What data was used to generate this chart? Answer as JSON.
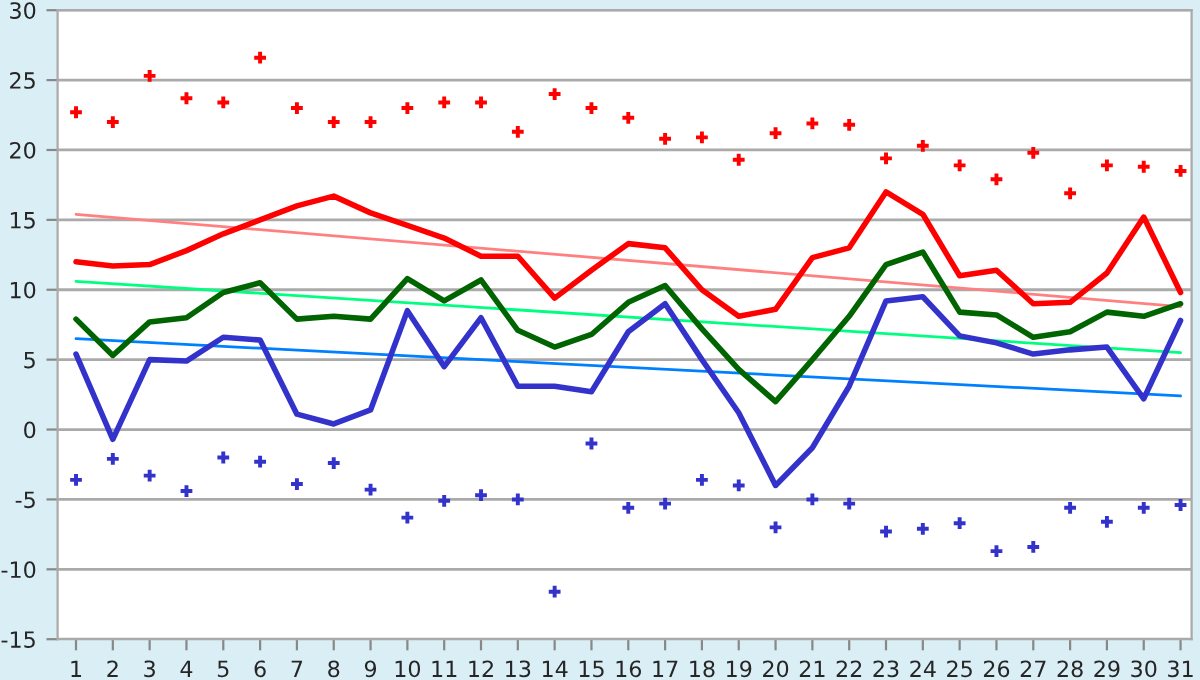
{
  "chart_data": {
    "type": "line",
    "categories": [
      "1",
      "2",
      "3",
      "4",
      "5",
      "6",
      "7",
      "8",
      "9",
      "10",
      "11",
      "12",
      "13",
      "14",
      "15",
      "16",
      "17",
      "18",
      "19",
      "20",
      "21",
      "22",
      "23",
      "24",
      "25",
      "26",
      "27",
      "28",
      "29",
      "30",
      "31"
    ],
    "ylim": [
      -15,
      30
    ],
    "yticks": [
      -15,
      -10,
      -5,
      0,
      5,
      10,
      15,
      20,
      25,
      30
    ],
    "grid": "y",
    "series": [
      {
        "type": "scatter",
        "marker": "cross",
        "color": "#ff0000",
        "values": [
          22.7,
          22.0,
          25.3,
          23.7,
          23.4,
          26.6,
          23.0,
          22.0,
          22.0,
          23.0,
          23.4,
          23.4,
          21.3,
          24.0,
          23.0,
          22.3,
          20.8,
          20.9,
          19.3,
          21.2,
          21.9,
          21.8,
          19.4,
          20.3,
          18.9,
          17.9,
          19.8,
          16.9,
          18.9,
          18.8,
          18.5
        ]
      },
      {
        "type": "scatter",
        "marker": "cross",
        "color": "#3333cc",
        "values": [
          -3.6,
          -2.1,
          -3.3,
          -4.4,
          -2.0,
          -2.3,
          -3.9,
          -2.4,
          -4.3,
          -6.3,
          -5.1,
          -4.7,
          -5.0,
          -11.6,
          -1.0,
          -5.6,
          -5.3,
          -3.6,
          -4.0,
          -7.0,
          -5.0,
          -5.3,
          -7.3,
          -7.1,
          -6.7,
          -8.7,
          -8.4,
          -5.6,
          -6.6,
          -5.6,
          -5.4
        ]
      },
      {
        "type": "line",
        "x": [
          "1",
          "31"
        ],
        "color": "#ff8080",
        "values": [
          15.4,
          8.8
        ]
      },
      {
        "type": "line",
        "x": [
          "1",
          "31"
        ],
        "color": "#00ff80",
        "values": [
          10.6,
          5.5
        ]
      },
      {
        "type": "line",
        "x": [
          "1",
          "31"
        ],
        "color": "#0080ff",
        "values": [
          6.5,
          2.4
        ]
      },
      {
        "color": "#ff0000",
        "values": [
          12.0,
          11.7,
          11.8,
          12.8,
          14.0,
          15.0,
          16.0,
          16.7,
          15.5,
          14.6,
          13.7,
          12.4,
          12.4,
          9.4,
          11.4,
          13.3,
          13.0,
          10.0,
          8.1,
          8.6,
          12.3,
          13.0,
          17.0,
          15.4,
          11.0,
          11.4,
          9.0,
          9.1,
          11.2,
          15.2,
          9.8
        ]
      },
      {
        "color": "#006400",
        "values": [
          7.9,
          5.3,
          7.7,
          8.0,
          9.8,
          10.5,
          7.9,
          8.1,
          7.9,
          10.8,
          9.2,
          10.7,
          7.1,
          5.9,
          6.8,
          9.1,
          10.3,
          7.2,
          4.3,
          2.0,
          5.0,
          8.1,
          11.8,
          12.7,
          8.4,
          8.2,
          6.6,
          7.0,
          8.4,
          8.1,
          9.0
        ]
      },
      {
        "color": "#3333cc",
        "values": [
          5.4,
          -0.7,
          5.0,
          4.9,
          6.6,
          6.4,
          1.1,
          0.4,
          1.4,
          8.5,
          4.5,
          8.0,
          3.1,
          3.1,
          2.7,
          7.0,
          9.0,
          5.0,
          1.2,
          -4.0,
          -1.3,
          3.1,
          9.2,
          9.5,
          6.7,
          6.2,
          5.4,
          5.7,
          5.9,
          2.2,
          7.8
        ]
      }
    ]
  }
}
